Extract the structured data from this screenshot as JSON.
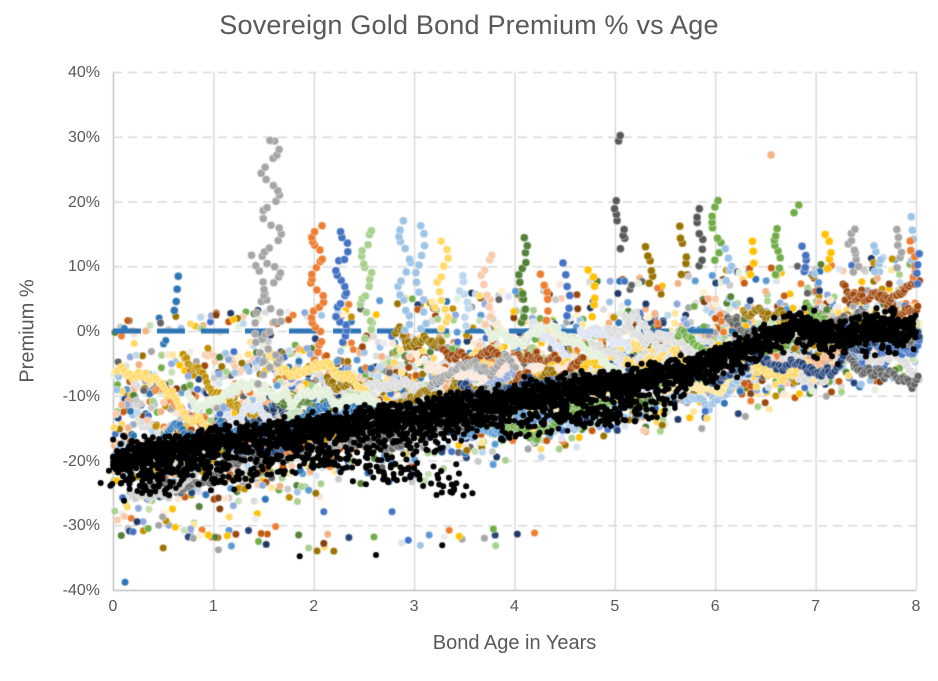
{
  "figure": {
    "background": "#FFFFFF",
    "text_color": "#595959"
  },
  "chart_data": {
    "type": "scatter",
    "title": "Sovereign Gold Bond Premium % vs Age",
    "xlabel": "Bond Age in Years",
    "ylabel": "Premium %",
    "xlim": [
      0,
      8
    ],
    "ylim": [
      -40,
      40
    ],
    "x_ticks": [
      "0",
      "1",
      "2",
      "3",
      "4",
      "5",
      "6",
      "7",
      "8"
    ],
    "x_tick_values": [
      0,
      1,
      2,
      3,
      4,
      5,
      6,
      7,
      8
    ],
    "y_ticks": [
      "40%",
      "30%",
      "20%",
      "10%",
      "0%",
      "-10%",
      "-20%",
      "-30%",
      "-40%"
    ],
    "y_tick_values": [
      40,
      30,
      20,
      10,
      0,
      -10,
      -20,
      -30,
      -40
    ],
    "grid": {
      "color": "#D9D9D9",
      "vertical_style": "solid",
      "horizontal_style": "dashed"
    },
    "axis_color": "#BFBFBF",
    "legend": "none",
    "palettes": {
      "main": [
        "#4472C4",
        "#ED7D31",
        "#A5A5A5",
        "#FFC000",
        "#5B9BD5",
        "#70AD47",
        "#264478",
        "#9E480E",
        "#636363",
        "#997300",
        "#2E75B6",
        "#C55A11",
        "#538135",
        "#BF8F00",
        "#1F3864",
        "#843C0C"
      ],
      "light": [
        "#8FAADC",
        "#F4B183",
        "#C9C9C9",
        "#FFD966",
        "#9DC3E6",
        "#A9D18E"
      ],
      "pale": [
        "#BDD7EE",
        "#F8CBAD",
        "#DBDBDB",
        "#FFE699",
        "#C5E0B4",
        "#DAE3F3",
        "#FBE5D6",
        "#EDEDED",
        "#FFF2CC",
        "#E2F0D9"
      ]
    },
    "series": [
      {
        "name": "pale-tranche-traces",
        "kind": "traces",
        "count": 32,
        "palette": "pale",
        "radius": 3.6,
        "x_step": 0.02,
        "min_len": 0.4,
        "max_len": 2.4,
        "wiggle": 1.6
      },
      {
        "name": "colored-tranche-cloud",
        "kind": "cloud",
        "count": 3400,
        "radius": 3.7,
        "lower_envelope": {
          "at_x0": -33,
          "slope": 3.05
        },
        "upper_envelope": {
          "at_x0": -1,
          "slope": 1.3
        }
      },
      {
        "name": "zero-premium-reference-line",
        "kind": "refline",
        "y": 0,
        "color": "#2E75B6",
        "width": 5,
        "dash": [
          28,
          16
        ]
      },
      {
        "name": "colored-tranche-traces",
        "kind": "traces",
        "count": 64,
        "palette": "mixed",
        "radius": 3.8,
        "x_step": 0.02,
        "min_len": 0.4,
        "max_len": 2.6,
        "wiggle": 1.6
      },
      {
        "name": "premium-spike-columns",
        "kind": "spikes",
        "radius": 4.0,
        "columns": [
          "x",
          "y_base",
          "y_top",
          "color",
          "count",
          "sway"
        ],
        "rows": [
          [
            0.62,
            3,
            8.3,
            "#2E75B6",
            4,
            0.03
          ],
          [
            1.45,
            -8,
            12,
            "#A5A5A5",
            14,
            0.05
          ],
          [
            1.58,
            -6,
            29.8,
            "#A5A5A5",
            42,
            0.09
          ],
          [
            2.03,
            -3,
            16.5,
            "#ED7D31",
            24,
            0.06
          ],
          [
            2.28,
            -2,
            15,
            "#4472C4",
            20,
            0.05
          ],
          [
            2.52,
            -1,
            15.5,
            "#A9D18E",
            18,
            0.05
          ],
          [
            2.9,
            0,
            17,
            "#9DC3E6",
            16,
            0.05
          ],
          [
            3.07,
            0,
            16.5,
            "#9DC3E6",
            12,
            0.04
          ],
          [
            3.28,
            0,
            13.5,
            "#FFD966",
            12,
            0.04
          ],
          [
            3.5,
            1,
            8.5,
            "#BDD7EE",
            8,
            0.03
          ],
          [
            3.72,
            1,
            12,
            "#F8CBAD",
            10,
            0.04
          ],
          [
            4.08,
            1,
            14.5,
            "#538135",
            12,
            0.04
          ],
          [
            4.3,
            2,
            8.5,
            "#ED7D31",
            6,
            0.03
          ],
          [
            4.52,
            2,
            10.5,
            "#4472C4",
            6,
            0.03
          ],
          [
            4.78,
            2.5,
            9.5,
            "#FFC000",
            6,
            0.03
          ],
          [
            5.05,
            29,
            30,
            "#595959",
            2,
            0.02
          ],
          [
            5.05,
            13,
            20,
            "#595959",
            8,
            0.05
          ],
          [
            5.35,
            7,
            13,
            "#997300",
            6,
            0.03
          ],
          [
            5.67,
            9,
            16,
            "#997300",
            6,
            0.03
          ],
          [
            5.85,
            10,
            19,
            "#595959",
            8,
            0.04
          ],
          [
            6.0,
            11,
            20.5,
            "#70AD47",
            9,
            0.04
          ],
          [
            6.12,
            8,
            12.5,
            "#9DC3E6",
            5,
            0.03
          ],
          [
            6.35,
            9,
            13.5,
            "#FFC000",
            4,
            0.03
          ],
          [
            6.55,
            26.5,
            27,
            "#F4B183",
            1,
            0
          ],
          [
            6.62,
            9,
            16,
            "#70AD47",
            8,
            0.04
          ],
          [
            6.8,
            18.5,
            19.5,
            "#70AD47",
            2,
            0.02
          ],
          [
            6.88,
            9,
            13,
            "#4472C4",
            5,
            0.03
          ],
          [
            7.12,
            10,
            15,
            "#FFC000",
            5,
            0.03
          ],
          [
            7.38,
            9,
            16,
            "#A5A5A5",
            9,
            0.04
          ],
          [
            7.6,
            9,
            13,
            "#9DC3E6",
            5,
            0.03
          ],
          [
            7.82,
            10,
            15.5,
            "#A5A5A5",
            6,
            0.03
          ],
          [
            7.95,
            11,
            17.5,
            "#9DC3E6",
            5,
            0.03
          ],
          [
            7.97,
            8,
            14,
            "#ED7D31",
            6,
            0.03
          ],
          [
            8.0,
            7,
            12,
            "#4472C4",
            4,
            0.03
          ]
        ]
      },
      {
        "name": "deep-discount-outliers",
        "kind": "outliers",
        "radius": 3.7,
        "cluster_columns": [
          "x_min",
          "x_max",
          "y_min",
          "y_max",
          "count"
        ],
        "clusters": [
          [
            0.05,
            1.55,
            -28.5,
            -32,
            26
          ],
          [
            1.5,
            4.3,
            -29.5,
            -34,
            14
          ],
          [
            4.4,
            6.6,
            -12.5,
            -16.5,
            12
          ]
        ],
        "point_columns": [
          "x",
          "y",
          "color"
        ],
        "points": [
          [
            0.12,
            -38.8,
            "#2E75B6"
          ],
          [
            0.2,
            -31,
            "#4472C4"
          ],
          [
            0.35,
            -30.5,
            "#70AD47"
          ],
          [
            0.5,
            -33.5,
            "#997300"
          ],
          [
            0.62,
            -30.3,
            "#FFC000"
          ],
          [
            0.75,
            -31.8,
            "#264478"
          ],
          [
            0.8,
            -32,
            "#A5A5A5"
          ],
          [
            0.95,
            -31.5,
            "#FFC000"
          ],
          [
            1.05,
            -33.8,
            "#A5A5A5"
          ],
          [
            1.18,
            -33.2,
            "#5B9BD5"
          ],
          [
            1.35,
            -30.8,
            "#264478"
          ],
          [
            1.45,
            -32.5,
            "#70AD47"
          ],
          [
            1.62,
            -30.2,
            "#ED7D31"
          ],
          [
            1.85,
            -31.5,
            "#538135"
          ],
          [
            1.95,
            -33.5,
            "#A9D18E"
          ],
          [
            2.1,
            -32.8,
            "#843C0C"
          ],
          [
            2.2,
            -34,
            "#997300"
          ],
          [
            2.35,
            -31.9,
            "#264478"
          ],
          [
            2.6,
            -31.8,
            "#70AD47"
          ],
          [
            3.15,
            -31.5,
            "#5B9BD5"
          ],
          [
            3.45,
            -31.7,
            "#FFC000"
          ],
          [
            3.7,
            -32,
            "#A5A5A5"
          ],
          [
            4.2,
            -31.2,
            "#ED7D31"
          ],
          [
            2.1,
            -27.9,
            "#4472C4"
          ],
          [
            2.75,
            -23.3,
            "#4472C4"
          ],
          [
            2.78,
            -27.9,
            "#4472C4"
          ],
          [
            5.9,
            -12.4,
            "#4472C4"
          ],
          [
            6.3,
            -13.2,
            "#A5A5A5"
          ]
        ]
      },
      {
        "name": "dense-black-benchmark-band",
        "kind": "band",
        "color": "#000000",
        "count": 3000,
        "radius": 3.0,
        "sigma": 1.15,
        "path": [
          [
            0,
            -19.5
          ],
          [
            0.5,
            -18.5
          ],
          [
            1,
            -17.4
          ],
          [
            1.5,
            -16.3
          ],
          [
            2,
            -15.3
          ],
          [
            2.5,
            -14.1
          ],
          [
            3,
            -12.9
          ],
          [
            3.5,
            -11.6
          ],
          [
            4,
            -10.4
          ],
          [
            4.5,
            -9.3
          ],
          [
            5,
            -8.3
          ],
          [
            5.5,
            -6.9
          ],
          [
            6,
            -4.6
          ],
          [
            6.3,
            -2.6
          ],
          [
            6.55,
            -0.6
          ],
          [
            6.8,
            0.9
          ],
          [
            7,
            -0.1
          ],
          [
            7.25,
            -0.7
          ],
          [
            7.5,
            0.2
          ],
          [
            7.75,
            0.9
          ],
          [
            8,
            0.4
          ]
        ],
        "stragglers": {
          "count": 420,
          "x_min": 0.3,
          "x_max": 5.6,
          "offset_min": 1.5,
          "offset_max": 6.3
        },
        "cluster_columns": [
          "x_center",
          "y_center",
          "x_spread",
          "y_spread",
          "count"
        ],
        "clusters": [
          [
            0.3,
            -23,
            0.35,
            2.5,
            45
          ],
          [
            1.15,
            -23,
            0.25,
            1.5,
            18
          ],
          [
            2.15,
            -20,
            0.3,
            1.5,
            22
          ],
          [
            2.85,
            -21.5,
            0.55,
            2.2,
            55
          ],
          [
            3.3,
            -24.5,
            0.3,
            1.5,
            14
          ],
          [
            4.7,
            -13.5,
            0.45,
            1.2,
            30
          ],
          [
            5.1,
            -11.5,
            0.3,
            1.0,
            16
          ]
        ],
        "points": [
          [
            1.86,
            -34.8
          ],
          [
            2.62,
            -34.6
          ],
          [
            3.28,
            -33.1
          ]
        ]
      }
    ]
  }
}
